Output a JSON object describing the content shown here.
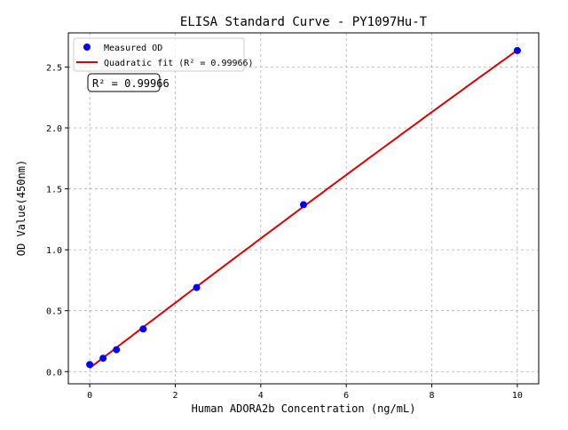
{
  "chart_data": {
    "type": "scatter",
    "title": "ELISA Standard Curve - PY1097Hu-T",
    "xlabel": "Human ADORA2b Concentration (ng/mL)",
    "ylabel": "OD Value(450nm)",
    "xlim": [
      -0.5,
      10.5
    ],
    "ylim": [
      -0.1,
      2.78
    ],
    "xticks": [
      0,
      2,
      4,
      6,
      8,
      10
    ],
    "xtick_labels": [
      "0",
      "2",
      "4",
      "6",
      "8",
      "10"
    ],
    "yticks": [
      0,
      0.5,
      1,
      1.5,
      2,
      2.5
    ],
    "ytick_labels": [
      "0.0",
      "0.5",
      "1.0",
      "1.5",
      "2.0",
      "2.5"
    ],
    "grid": true,
    "legend_position": "top-left",
    "series": [
      {
        "name": "Measured OD",
        "kind": "points",
        "color": "#0000ff",
        "x": [
          0,
          0.3125,
          0.625,
          1.25,
          2.5,
          5,
          10
        ],
        "y": [
          0.058,
          0.11,
          0.18,
          0.35,
          0.69,
          1.37,
          2.635
        ]
      },
      {
        "name": "Quadratic fit (R² = 0.99966)",
        "kind": "fit-line",
        "color": "#dd0000",
        "degree": 2
      }
    ],
    "annotation": "R² = 0.99966"
  }
}
